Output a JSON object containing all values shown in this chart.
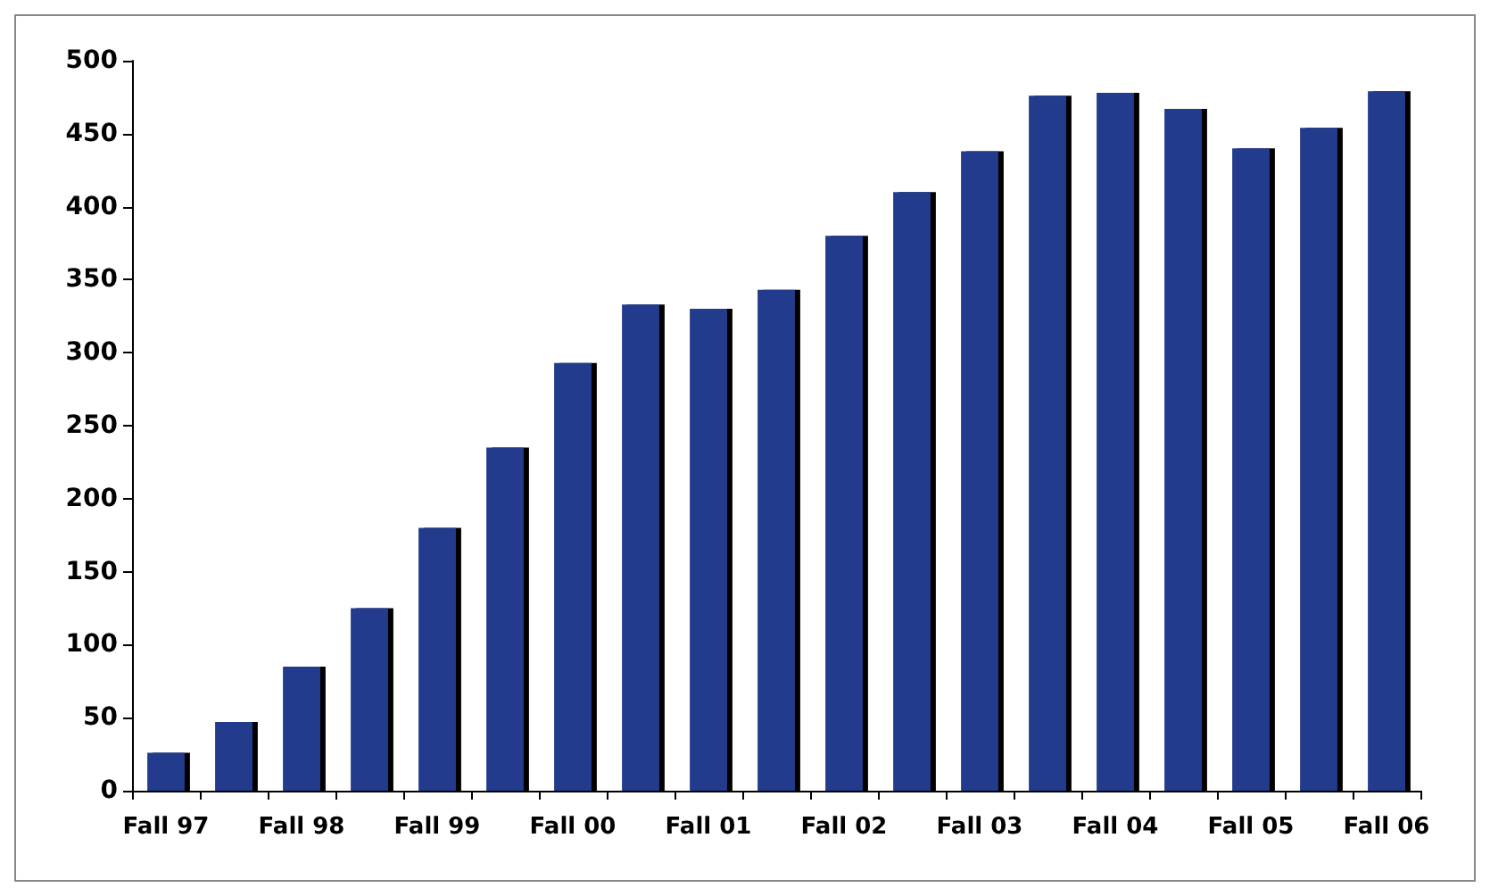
{
  "chart_data": {
    "type": "bar",
    "categories": [
      "Fall 97",
      null,
      "Fall 98",
      null,
      "Fall 99",
      null,
      "Fall 00",
      null,
      "Fall 01",
      null,
      "Fall 02",
      null,
      "Fall 03",
      null,
      "Fall 04",
      null,
      "Fall 05",
      null,
      "Fall 06"
    ],
    "values": [
      26,
      47,
      85,
      125,
      180,
      235,
      293,
      333,
      330,
      343,
      380,
      410,
      438,
      476,
      478,
      467,
      440,
      454,
      479
    ],
    "color": "#233a8c",
    "ylim": [
      0,
      500
    ],
    "yticks": [
      0,
      50,
      100,
      150,
      200,
      250,
      300,
      350,
      400,
      450,
      500
    ],
    "grid": false
  }
}
